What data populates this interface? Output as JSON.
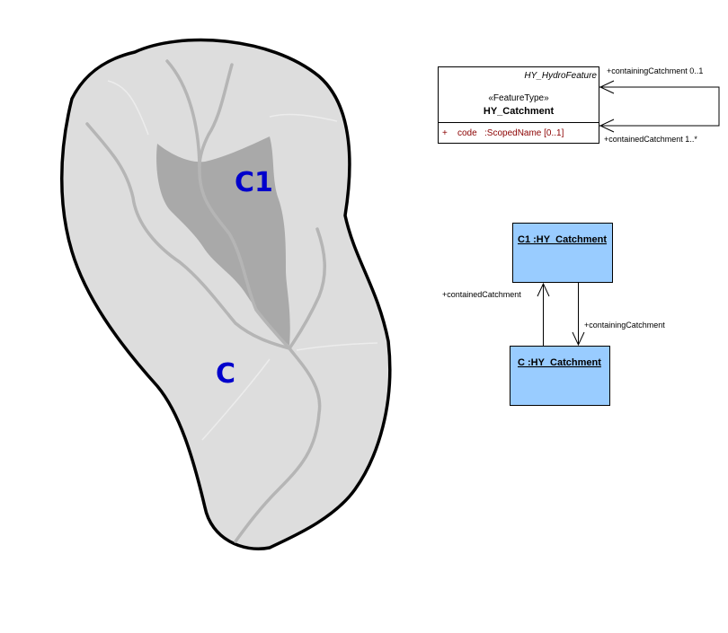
{
  "map": {
    "catchment_label": "C",
    "subcatchment_label": "C1",
    "colors": {
      "catchment_fill": "#dddddd",
      "subcatchment_fill": "#a9a9a9",
      "stream": "#b5b5b5",
      "outline": "#000000",
      "label": "#0000cc"
    }
  },
  "class_box": {
    "parent_class": "HY_HydroFeature",
    "stereotype": "«FeatureType»",
    "name": "HY_Catchment",
    "attribute_visibility": "+",
    "attribute_name": "code",
    "attribute_type": ":ScopedName [0..1]",
    "assoc_containing": "+containingCatchment 0..1",
    "assoc_contained": "+containedCatchment 1..*"
  },
  "instances": {
    "c1_name": "C1 :HY_Catchment",
    "c_name": "C :HY_Catchment",
    "assoc_contained": "+containedCatchment",
    "assoc_containing": "+containingCatchment",
    "fill": "#99ccff"
  }
}
